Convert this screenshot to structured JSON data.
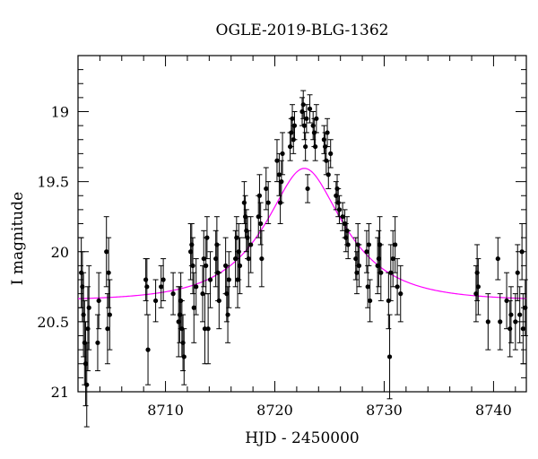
{
  "chart_data": {
    "type": "scatter",
    "title": "OGLE-2019-BLG-1362",
    "xlabel": "HJD - 2450000",
    "ylabel": "I magnitude",
    "xlim": [
      8702,
      8743
    ],
    "ylim": [
      21,
      18.6
    ],
    "y_inverted": true,
    "xticks": [
      8710,
      8720,
      8730,
      8740
    ],
    "yticks": [
      19,
      19.5,
      20,
      20.5,
      21
    ],
    "ytick_labels": [
      "19",
      "19.5",
      "20",
      "20.5",
      "21"
    ],
    "grid": false,
    "colors": {
      "points": "#000000",
      "model": "#ff00ff"
    },
    "series": [
      {
        "type": "scatter_errorbar",
        "points": [
          [
            8702.3,
            20.15,
            0.25
          ],
          [
            8702.4,
            20.25,
            0.25
          ],
          [
            8702.5,
            20.45,
            0.3
          ],
          [
            8702.6,
            20.65,
            0.3
          ],
          [
            8702.7,
            20.8,
            0.3
          ],
          [
            8702.8,
            20.95,
            0.3
          ],
          [
            8702.9,
            20.55,
            0.3
          ],
          [
            8703.0,
            20.4,
            0.3
          ],
          [
            8703.8,
            20.65,
            0.2
          ],
          [
            8703.9,
            20.35,
            0.2
          ],
          [
            8704.6,
            20.0,
            0.25
          ],
          [
            8704.7,
            20.55,
            0.25
          ],
          [
            8704.8,
            20.15,
            0.25
          ],
          [
            8704.9,
            20.45,
            0.25
          ],
          [
            8708.2,
            20.2,
            0.15
          ],
          [
            8708.3,
            20.25,
            0.2
          ],
          [
            8708.4,
            20.7,
            0.25
          ],
          [
            8709.1,
            20.35,
            0.15
          ],
          [
            8709.6,
            20.25,
            0.15
          ],
          [
            8709.8,
            20.2,
            0.15
          ],
          [
            8710.7,
            20.3,
            0.15
          ],
          [
            8711.2,
            20.5,
            0.25
          ],
          [
            8711.3,
            20.45,
            0.2
          ],
          [
            8711.4,
            20.35,
            0.2
          ],
          [
            8711.5,
            20.55,
            0.2
          ],
          [
            8711.6,
            20.65,
            0.2
          ],
          [
            8711.7,
            20.75,
            0.2
          ],
          [
            8712.3,
            20.0,
            0.2
          ],
          [
            8712.4,
            19.95,
            0.15
          ],
          [
            8712.5,
            20.1,
            0.2
          ],
          [
            8712.6,
            20.4,
            0.25
          ],
          [
            8712.8,
            20.25,
            0.2
          ],
          [
            8713.4,
            20.3,
            0.2
          ],
          [
            8713.5,
            20.05,
            0.2
          ],
          [
            8713.6,
            20.55,
            0.25
          ],
          [
            8713.7,
            20.1,
            0.2
          ],
          [
            8713.8,
            19.9,
            0.15
          ],
          [
            8713.9,
            20.55,
            0.25
          ],
          [
            8714.1,
            20.2,
            0.2
          ],
          [
            8714.6,
            20.05,
            0.2
          ],
          [
            8714.7,
            19.95,
            0.2
          ],
          [
            8714.8,
            20.15,
            0.2
          ],
          [
            8714.9,
            20.35,
            0.2
          ],
          [
            8715.5,
            20.1,
            0.2
          ],
          [
            8715.6,
            20.3,
            0.2
          ],
          [
            8715.7,
            20.45,
            0.2
          ],
          [
            8715.8,
            20.2,
            0.2
          ],
          [
            8716.4,
            20.05,
            0.2
          ],
          [
            8716.5,
            19.9,
            0.15
          ],
          [
            8716.6,
            20.2,
            0.2
          ],
          [
            8716.7,
            20.0,
            0.2
          ],
          [
            8716.8,
            20.1,
            0.2
          ],
          [
            8717.2,
            19.65,
            0.15
          ],
          [
            8717.3,
            19.75,
            0.15
          ],
          [
            8717.4,
            19.85,
            0.15
          ],
          [
            8717.5,
            19.9,
            0.15
          ],
          [
            8717.6,
            20.05,
            0.2
          ],
          [
            8717.8,
            19.95,
            0.2
          ],
          [
            8718.5,
            19.75,
            0.15
          ],
          [
            8718.6,
            19.6,
            0.15
          ],
          [
            8718.7,
            19.8,
            0.15
          ],
          [
            8718.8,
            20.05,
            0.2
          ],
          [
            8719.2,
            19.55,
            0.15
          ],
          [
            8719.4,
            19.65,
            0.15
          ],
          [
            8720.2,
            19.35,
            0.15
          ],
          [
            8720.4,
            19.45,
            0.15
          ],
          [
            8720.5,
            19.65,
            0.15
          ],
          [
            8720.6,
            19.5,
            0.15
          ],
          [
            8720.7,
            19.3,
            0.15
          ],
          [
            8721.4,
            19.25,
            0.1
          ],
          [
            8721.5,
            19.15,
            0.1
          ],
          [
            8721.6,
            19.05,
            0.1
          ],
          [
            8721.7,
            19.2,
            0.1
          ],
          [
            8721.8,
            19.1,
            0.1
          ],
          [
            8722.5,
            19.0,
            0.1
          ],
          [
            8722.6,
            18.95,
            0.1
          ],
          [
            8722.7,
            19.1,
            0.1
          ],
          [
            8722.8,
            19.25,
            0.1
          ],
          [
            8722.9,
            19.05,
            0.1
          ],
          [
            8723.0,
            19.55,
            0.1
          ],
          [
            8723.2,
            18.98,
            0.1
          ],
          [
            8723.5,
            19.1,
            0.1
          ],
          [
            8723.6,
            19.15,
            0.1
          ],
          [
            8723.7,
            19.25,
            0.1
          ],
          [
            8723.8,
            19.05,
            0.1
          ],
          [
            8724.5,
            19.2,
            0.1
          ],
          [
            8724.6,
            19.25,
            0.1
          ],
          [
            8724.7,
            19.35,
            0.1
          ],
          [
            8724.8,
            19.15,
            0.1
          ],
          [
            8724.9,
            19.45,
            0.1
          ],
          [
            8725.1,
            19.3,
            0.1
          ],
          [
            8725.6,
            19.6,
            0.1
          ],
          [
            8725.7,
            19.55,
            0.1
          ],
          [
            8725.8,
            19.65,
            0.1
          ],
          [
            8725.9,
            19.7,
            0.1
          ],
          [
            8726.2,
            19.75,
            0.1
          ],
          [
            8726.4,
            19.8,
            0.1
          ],
          [
            8726.5,
            19.9,
            0.1
          ],
          [
            8726.6,
            19.85,
            0.1
          ],
          [
            8726.7,
            19.95,
            0.1
          ],
          [
            8727.4,
            20.05,
            0.15
          ],
          [
            8727.5,
            20.15,
            0.15
          ],
          [
            8727.6,
            19.95,
            0.15
          ],
          [
            8727.7,
            20.1,
            0.15
          ],
          [
            8728.4,
            20.0,
            0.15
          ],
          [
            8728.5,
            20.25,
            0.15
          ],
          [
            8728.6,
            19.95,
            0.15
          ],
          [
            8728.7,
            20.35,
            0.15
          ],
          [
            8729.4,
            20.1,
            0.2
          ],
          [
            8729.5,
            20.05,
            0.2
          ],
          [
            8729.6,
            19.95,
            0.2
          ],
          [
            8729.7,
            20.15,
            0.2
          ],
          [
            8730.4,
            20.35,
            0.2
          ],
          [
            8730.5,
            20.75,
            0.3
          ],
          [
            8730.6,
            20.15,
            0.2
          ],
          [
            8730.8,
            20.05,
            0.2
          ],
          [
            8731.0,
            19.95,
            0.2
          ],
          [
            8731.2,
            20.25,
            0.2
          ],
          [
            8731.5,
            20.3,
            0.2
          ],
          [
            8738.4,
            20.3,
            0.2
          ],
          [
            8738.5,
            20.15,
            0.2
          ],
          [
            8738.6,
            20.25,
            0.2
          ],
          [
            8739.5,
            20.5,
            0.2
          ],
          [
            8740.4,
            20.05,
            0.15
          ],
          [
            8740.6,
            20.5,
            0.2
          ],
          [
            8741.2,
            20.35,
            0.2
          ],
          [
            8741.5,
            20.55,
            0.2
          ],
          [
            8741.6,
            20.45,
            0.2
          ],
          [
            8742.0,
            20.5,
            0.2
          ],
          [
            8742.2,
            20.15,
            0.2
          ],
          [
            8742.4,
            20.45,
            0.2
          ],
          [
            8742.6,
            20.0,
            0.2
          ],
          [
            8742.7,
            20.55,
            0.25
          ],
          [
            8742.9,
            20.4,
            0.2
          ]
        ]
      },
      {
        "type": "line",
        "model": {
          "t0": 8722.7,
          "tE": 6.5,
          "u0": 0.45,
          "base_mag": 20.35
        }
      }
    ]
  }
}
